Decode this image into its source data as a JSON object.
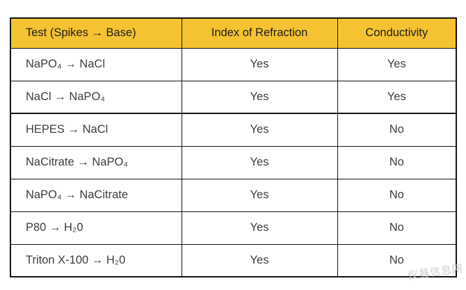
{
  "colors": {
    "header_background": "#F5C331",
    "border": "#141414",
    "header_text": "#1E1E1C",
    "cell_text": "#3D3D3B",
    "page_background": "#FFFFFF"
  },
  "table": {
    "header": {
      "test": "Test (Spikes → Base)",
      "index_of_refraction": "Index of Refraction",
      "conductivity": "Conductivity"
    },
    "rows": [
      {
        "test": "NaPO₄ → NaCl",
        "index_of_refraction": "Yes",
        "conductivity": "Yes"
      },
      {
        "test": "NaCl → NaPO₄",
        "index_of_refraction": "Yes",
        "conductivity": "Yes"
      },
      {
        "test": "HEPES → NaCl",
        "index_of_refraction": "Yes",
        "conductivity": "No"
      },
      {
        "test": "NaCitrate → NaPO₄",
        "index_of_refraction": "Yes",
        "conductivity": "No"
      },
      {
        "test": "NaPO₄ → NaCitrate",
        "index_of_refraction": "Yes",
        "conductivity": "No"
      },
      {
        "test": "P80 → H₂0",
        "index_of_refraction": "Yes",
        "conductivity": "No"
      },
      {
        "test": "Triton X-100 → H₂0",
        "index_of_refraction": "Yes",
        "conductivity": "No"
      }
    ]
  },
  "watermark": {
    "text": "仪器信息网",
    "color": "#C6C6C6"
  },
  "chart_data": {
    "type": "table",
    "columns": [
      "Test (Spikes → Base)",
      "Index of Refraction",
      "Conductivity"
    ],
    "rows": [
      [
        "NaPO₄ → NaCl",
        "Yes",
        "Yes"
      ],
      [
        "NaCl → NaPO₄",
        "Yes",
        "Yes"
      ],
      [
        "HEPES → NaCl",
        "Yes",
        "No"
      ],
      [
        "NaCitrate → NaPO₄",
        "Yes",
        "No"
      ],
      [
        "NaPO₄ → NaCitrate",
        "Yes",
        "No"
      ],
      [
        "P80 → H₂0",
        "Yes",
        "No"
      ],
      [
        "Triton X-100 → H₂0",
        "Yes",
        "No"
      ]
    ],
    "title": "",
    "legend": "none",
    "notes": "Yellow header row; first column left-aligned, value columns centered; heavier rule below the second data row separating Yes/Yes group from Yes/No group"
  }
}
